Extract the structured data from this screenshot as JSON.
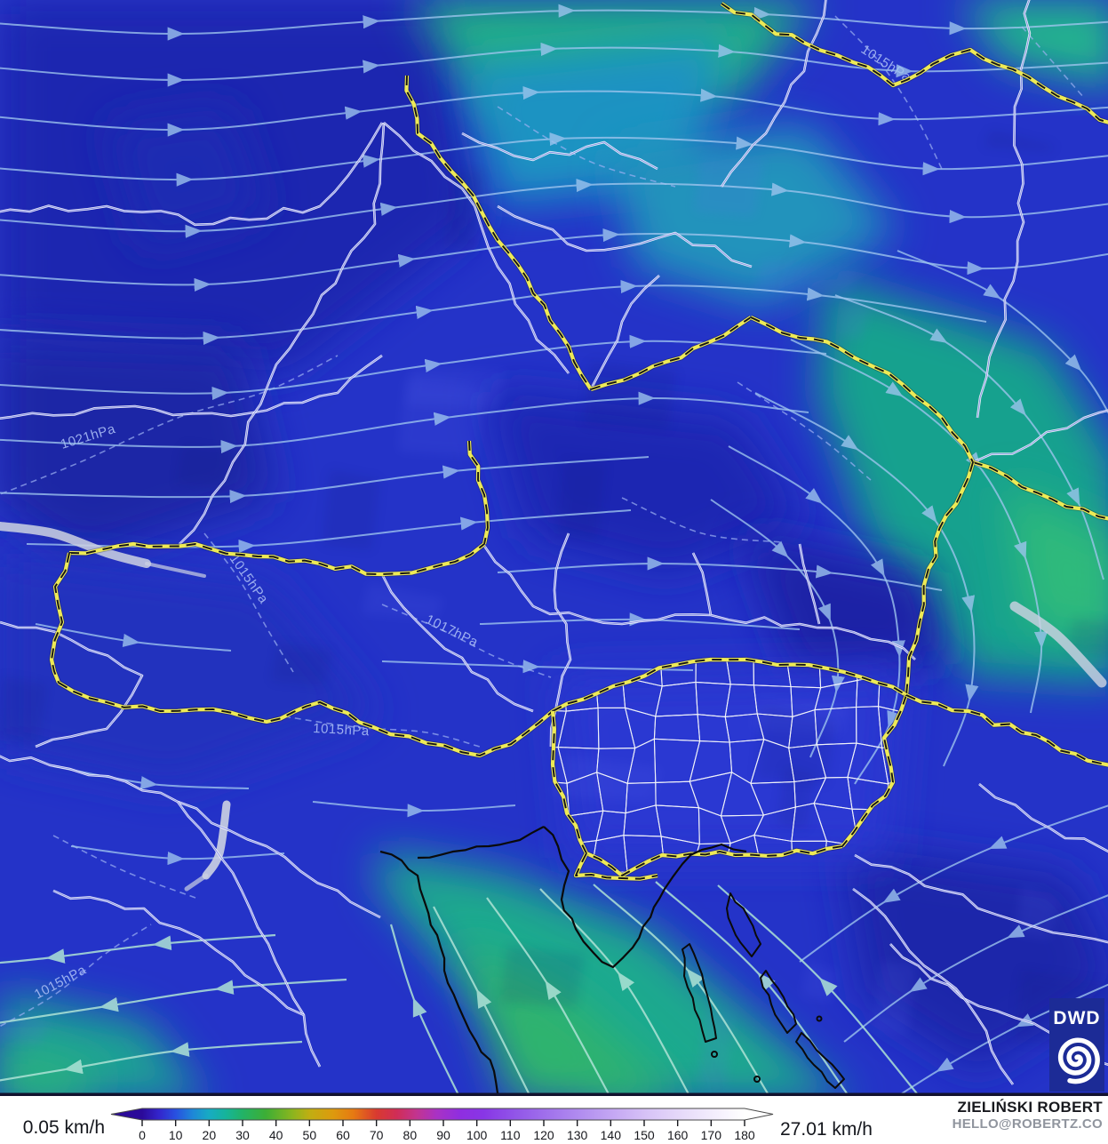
{
  "map": {
    "isobar_labels": [
      "1021hPa",
      "1015hPa",
      "1015hPa",
      "1015hPa",
      "1015hPa",
      "1017hPa"
    ],
    "logo": {
      "text": "DWD"
    }
  },
  "legend": {
    "min_label": "0.05 km/h",
    "max_label": "27.01 km/h",
    "unit": "km/h",
    "tick_values": [
      0,
      10,
      20,
      30,
      40,
      50,
      60,
      70,
      80,
      90,
      100,
      110,
      120,
      130,
      140,
      150,
      160,
      170,
      180
    ],
    "range": [
      0,
      180
    ],
    "colorbar_stops": [
      [
        0,
        "#2b0a99"
      ],
      [
        5,
        "#3325cc"
      ],
      [
        10,
        "#2850e0"
      ],
      [
        15,
        "#1e86d8"
      ],
      [
        20,
        "#17abc3"
      ],
      [
        25,
        "#16b49a"
      ],
      [
        30,
        "#22b366"
      ],
      [
        37,
        "#3dae35"
      ],
      [
        45,
        "#8cb51e"
      ],
      [
        50,
        "#c0ae12"
      ],
      [
        57,
        "#dd9a0e"
      ],
      [
        63,
        "#e67a12"
      ],
      [
        70,
        "#d93a30"
      ],
      [
        76,
        "#d02d56"
      ],
      [
        82,
        "#c23490"
      ],
      [
        88,
        "#a932c4"
      ],
      [
        95,
        "#8f2ee0"
      ],
      [
        102,
        "#8836e6"
      ],
      [
        112,
        "#9257e8"
      ],
      [
        122,
        "#a274ec"
      ],
      [
        132,
        "#b390f0"
      ],
      [
        142,
        "#c7abf4"
      ],
      [
        152,
        "#d9c6f7"
      ],
      [
        163,
        "#e9defa"
      ],
      [
        172,
        "#f5f0fd"
      ],
      [
        180,
        "#ffffff"
      ]
    ]
  },
  "attribution": {
    "name": "ZIELIŃSKI ROBERT",
    "email": "HELLO@ROBERTZ.CO"
  },
  "colors": {
    "field_base": "#2433c8",
    "border_national": "#eeea55",
    "border_national_dash": "#141414",
    "border_regional": "#ffffff",
    "coastline": "#0a0a0a",
    "streamline": "#9fc6ef",
    "streamline_adriatic": "#aee3d6",
    "isobar": "#9db0f2",
    "lake": "#ccd2e2",
    "logo_bg": "#1c2b96"
  }
}
